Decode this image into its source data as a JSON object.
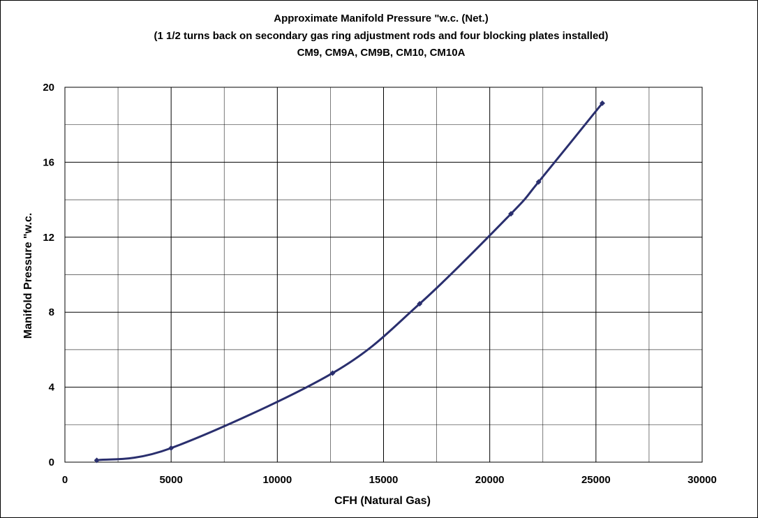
{
  "chart_data": {
    "type": "line",
    "title": "Approximate  Manifold Pressure \"w.c. (Net.)",
    "subtitle": "(1 1/2 turns back on secondary gas ring adjustment rods and four blocking plates installed)",
    "models": "CM9, CM9A, CM9B, CM10, CM10A",
    "xlabel": "CFH (Natural Gas)",
    "ylabel": "Manifold Pressure \"w.c.",
    "xlim": [
      0,
      30000
    ],
    "ylim": [
      0,
      20
    ],
    "x_ticks": [
      0,
      5000,
      10000,
      15000,
      20000,
      25000,
      30000
    ],
    "x_tick_labels": [
      "0",
      "5000",
      "10000",
      "15000",
      "20000",
      "25000",
      "30000"
    ],
    "y_ticks": [
      0,
      4,
      8,
      12,
      16,
      20
    ],
    "y_tick_labels": [
      "0",
      "4",
      "8",
      "12",
      "16",
      "20"
    ],
    "grid": true,
    "series": [
      {
        "color": "#2a2f6e",
        "marker": "diamond",
        "points": [
          {
            "x": 1500,
            "y": 0.1
          },
          {
            "x": 5000,
            "y": 0.75
          },
          {
            "x": 12600,
            "y": 4.75
          },
          {
            "x": 16700,
            "y": 8.45
          },
          {
            "x": 21000,
            "y": 13.25
          },
          {
            "x": 22300,
            "y": 14.95
          },
          {
            "x": 25300,
            "y": 19.15
          }
        ]
      }
    ]
  }
}
